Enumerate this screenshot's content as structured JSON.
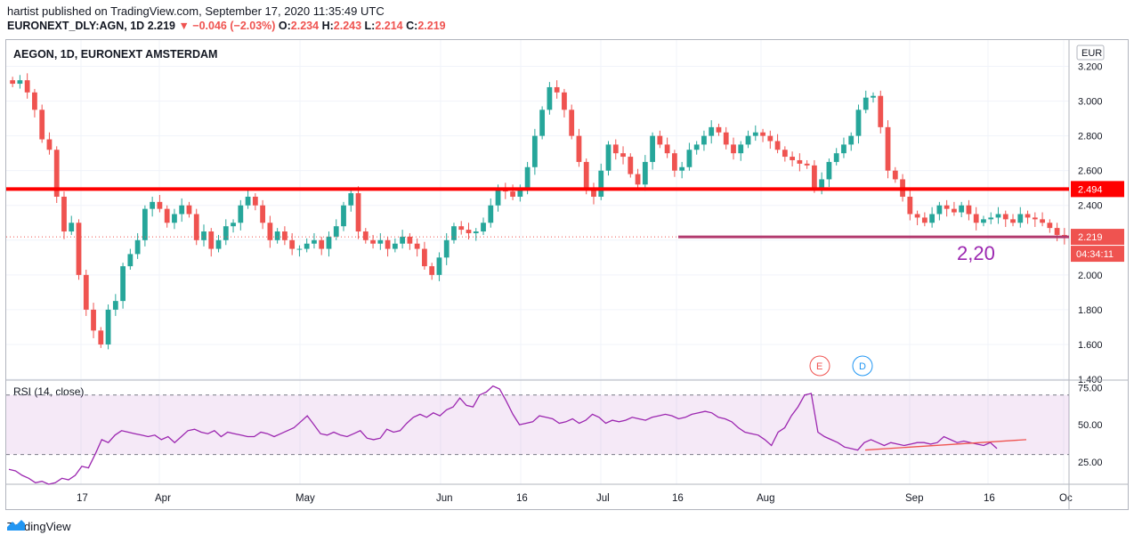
{
  "header": {
    "published": "hartist published on TradingView.com, September 17, 2020 11:35:49 UTC",
    "symbol": "EURONEXT_DLY:AGN, 1D",
    "last": "2.219",
    "change": "▼ −0.046 (−2.03%)",
    "o_label": "O:",
    "o": "2.234",
    "h_label": "H:",
    "h": "2.243",
    "l_label": "L:",
    "l": "2.214",
    "c_label": "C:",
    "c": "2.219"
  },
  "footer": {
    "brand": "TradingView"
  },
  "chart_data": [
    {
      "type": "candlestick",
      "title": "AEGON, 1D, EURONEXT AMSTERDAM",
      "currency": "EUR",
      "ylim": [
        1.4,
        3.3
      ],
      "yticks": [
        "3.200",
        "3.000",
        "2.800",
        "2.600",
        "2.400",
        "2.200",
        "2.000",
        "1.800",
        "1.600",
        "1.400"
      ],
      "xticks": [
        "17",
        "Apr",
        "May",
        "Jun",
        "16",
        "Jul",
        "16",
        "Aug",
        "Sep",
        "16",
        "Oc"
      ],
      "grid": true,
      "closes": [
        3.1,
        3.12,
        3.05,
        2.95,
        2.78,
        2.72,
        2.45,
        2.25,
        2.3,
        2.0,
        1.8,
        1.68,
        1.6,
        1.8,
        1.85,
        2.05,
        2.12,
        2.2,
        2.38,
        2.42,
        2.38,
        2.3,
        2.35,
        2.4,
        2.35,
        2.2,
        2.25,
        2.15,
        2.2,
        2.28,
        2.3,
        2.4,
        2.45,
        2.4,
        2.3,
        2.2,
        2.25,
        2.2,
        2.15,
        2.15,
        2.18,
        2.2,
        2.15,
        2.22,
        2.28,
        2.4,
        2.47,
        2.25,
        2.2,
        2.18,
        2.2,
        2.15,
        2.18,
        2.22,
        2.18,
        2.15,
        2.05,
        2.0,
        2.1,
        2.2,
        2.28,
        2.26,
        2.24,
        2.25,
        2.3,
        2.4,
        2.5,
        2.48,
        2.45,
        2.5,
        2.62,
        2.8,
        2.95,
        3.08,
        3.05,
        2.95,
        2.8,
        2.65,
        2.5,
        2.45,
        2.6,
        2.75,
        2.7,
        2.68,
        2.58,
        2.52,
        2.65,
        2.8,
        2.75,
        2.7,
        2.6,
        2.62,
        2.72,
        2.75,
        2.8,
        2.85,
        2.82,
        2.75,
        2.7,
        2.75,
        2.8,
        2.82,
        2.8,
        2.77,
        2.72,
        2.68,
        2.66,
        2.64,
        2.63,
        2.5,
        2.55,
        2.65,
        2.7,
        2.75,
        2.8,
        2.95,
        3.02,
        3.03,
        2.85,
        2.6,
        2.55,
        2.45,
        2.35,
        2.33,
        2.3,
        2.35,
        2.4,
        2.38,
        2.36,
        2.4,
        2.35,
        2.3,
        2.32,
        2.33,
        2.35,
        2.32,
        2.3,
        2.35,
        2.33,
        2.32,
        2.3,
        2.27,
        2.23,
        2.219
      ],
      "horizontal_lines": [
        {
          "price": 2.494,
          "label": "2.494",
          "color": "#ff0000"
        },
        {
          "price": 2.219,
          "label": "2.219",
          "color": "#b23a6e"
        }
      ],
      "price_labels": {
        "last": "2.219",
        "countdown": "04:34:11"
      },
      "annotation": {
        "text": "2,20",
        "color": "#9c27b0"
      },
      "event_markers": [
        {
          "text": "E",
          "color": "#ef5350"
        },
        {
          "text": "D",
          "color": "#2196f3"
        }
      ]
    },
    {
      "type": "line",
      "title": "RSI (14, close)",
      "ylim": [
        10,
        80
      ],
      "yticks": [
        "75.00",
        "50.00",
        "25.00"
      ],
      "band": [
        30,
        70
      ],
      "values": [
        20,
        19,
        16,
        14,
        11,
        12,
        10,
        11,
        14,
        13,
        16,
        22,
        21,
        30,
        40,
        38,
        43,
        46,
        45,
        44,
        43,
        42,
        43,
        40,
        42,
        38,
        42,
        46,
        47,
        45,
        44,
        46,
        42,
        45,
        44,
        43,
        42,
        42,
        45,
        44,
        42,
        44,
        46,
        48,
        52,
        56,
        50,
        44,
        43,
        45,
        43,
        42,
        44,
        46,
        41,
        40,
        41,
        47,
        45,
        46,
        51,
        55,
        57,
        55,
        58,
        56,
        60,
        62,
        68,
        63,
        62,
        70,
        72,
        76,
        74,
        66,
        57,
        50,
        51,
        52,
        56,
        55,
        54,
        51,
        52,
        54,
        51,
        53,
        57,
        55,
        51,
        53,
        52,
        53,
        55,
        54,
        53,
        55,
        56,
        57,
        56,
        54,
        55,
        57,
        58,
        59,
        58,
        55,
        54,
        52,
        48,
        45,
        44,
        43,
        40,
        36,
        45,
        48,
        56,
        62,
        70,
        71,
        45,
        42,
        40,
        38,
        35,
        34,
        33,
        38,
        40,
        38,
        36,
        38,
        37,
        36,
        37,
        38,
        38,
        37,
        38,
        42,
        40,
        38,
        39,
        38,
        37,
        36,
        38,
        34
      ],
      "trendline_color": "#ef5350"
    }
  ]
}
